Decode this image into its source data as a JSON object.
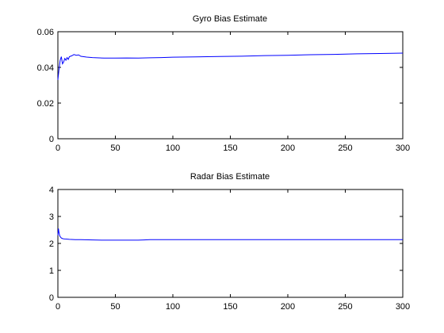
{
  "chart_data": [
    {
      "type": "line",
      "title": "Gyro Bias Estimate",
      "xlabel": "",
      "ylabel": "",
      "xlim": [
        0,
        300
      ],
      "ylim": [
        0,
        0.06
      ],
      "xticks": [
        0,
        50,
        100,
        150,
        200,
        250,
        300
      ],
      "yticks": [
        0,
        0.02,
        0.04,
        0.06
      ],
      "xtick_labels": [
        "0",
        "50",
        "100",
        "150",
        "200",
        "250",
        "300"
      ],
      "ytick_labels": [
        "0",
        "0.02",
        "0.04",
        "0.06"
      ],
      "grid": false,
      "series": [
        {
          "color": "#0000ff",
          "x": [
            0,
            1,
            2,
            3,
            4,
            5,
            6,
            7,
            8,
            9,
            10,
            12,
            14,
            16,
            18,
            20,
            25,
            30,
            40,
            50,
            60,
            70,
            80,
            90,
            100,
            120,
            140,
            160,
            180,
            200,
            220,
            240,
            260,
            280,
            300
          ],
          "y": [
            0.033,
            0.039,
            0.044,
            0.046,
            0.042,
            0.043,
            0.045,
            0.044,
            0.0455,
            0.0445,
            0.046,
            0.0465,
            0.0472,
            0.0468,
            0.047,
            0.0462,
            0.0458,
            0.0455,
            0.0452,
            0.0452,
            0.0453,
            0.0452,
            0.0454,
            0.0455,
            0.0457,
            0.0459,
            0.0461,
            0.0463,
            0.0466,
            0.0468,
            0.0471,
            0.0473,
            0.0476,
            0.0478,
            0.048
          ]
        }
      ]
    },
    {
      "type": "line",
      "title": "Radar Bias Estimate",
      "xlabel": "",
      "ylabel": "",
      "xlim": [
        0,
        300
      ],
      "ylim": [
        0,
        4
      ],
      "xticks": [
        0,
        50,
        100,
        150,
        200,
        250,
        300
      ],
      "yticks": [
        0,
        1,
        2,
        3,
        4
      ],
      "xtick_labels": [
        "0",
        "50",
        "100",
        "150",
        "200",
        "250",
        "300"
      ],
      "ytick_labels": [
        "0",
        "1",
        "2",
        "3",
        "4"
      ],
      "grid": false,
      "series": [
        {
          "color": "#0000ff",
          "x": [
            0,
            0.5,
            1,
            1.5,
            2,
            3,
            4,
            5,
            7,
            10,
            15,
            20,
            30,
            40,
            50,
            60,
            70,
            75,
            80,
            100,
            150,
            200,
            250,
            300
          ],
          "y": [
            2.3,
            2.55,
            2.4,
            2.3,
            2.25,
            2.2,
            2.18,
            2.17,
            2.16,
            2.15,
            2.14,
            2.14,
            2.13,
            2.12,
            2.12,
            2.12,
            2.12,
            2.13,
            2.14,
            2.14,
            2.14,
            2.14,
            2.14,
            2.14
          ]
        }
      ]
    }
  ]
}
